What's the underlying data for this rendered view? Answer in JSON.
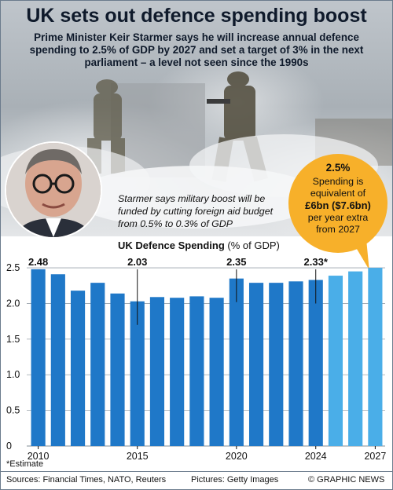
{
  "header": {
    "title": "UK sets out defence spending boost",
    "subtitle": "Prime Minister Keir Starmer says he will increase annual defence spending to 2.5% of GDP by 2027 and set a target of 3% in the next parliament – a level not seen since the 1990s"
  },
  "callout": {
    "percent": "2.5%",
    "line1": "Spending is",
    "line2": "equivalent of",
    "amount": "£6bn ($7.6bn)",
    "line3": "per year extra",
    "line4": "from 2027"
  },
  "note": "Starmer says military boost will be funded by cutting foreign aid budget from 0.5% to 0.3% of GDP",
  "chart_data": {
    "type": "bar",
    "title": "UK Defence Spending",
    "title_unit": "(% of GDP)",
    "categories": [
      "2010",
      "2011",
      "2012",
      "2013",
      "2014",
      "2015",
      "2016",
      "2017",
      "2018",
      "2019",
      "2020",
      "2021",
      "2022",
      "2023",
      "2024",
      "2025",
      "2026",
      "2027"
    ],
    "x_tick_labels": [
      "2010",
      "2015",
      "2020",
      "2024",
      "2027"
    ],
    "values": [
      2.48,
      2.41,
      2.18,
      2.29,
      2.14,
      2.03,
      2.09,
      2.08,
      2.1,
      2.08,
      2.35,
      2.29,
      2.29,
      2.31,
      2.33,
      2.39,
      2.45,
      2.5
    ],
    "estimate_from": "2024",
    "annotations": [
      {
        "category": "2010",
        "label": "2.48"
      },
      {
        "category": "2015",
        "label": "2.03"
      },
      {
        "category": "2020",
        "label": "2.35"
      },
      {
        "category": "2024",
        "label": "2.33*"
      }
    ],
    "ylim": [
      0,
      2.6
    ],
    "yticks": [
      0,
      0.5,
      1.0,
      1.5,
      2.0,
      2.5
    ],
    "ytick_labels": [
      "0",
      "0.5",
      "1.0",
      "1.5",
      "2.0",
      "2.5"
    ],
    "colors": {
      "actual": "#1f78c8",
      "projected": "#4aaee8",
      "grid": "#9aa3ab"
    },
    "grid": true
  },
  "footnote": "*Estimate",
  "footer": {
    "sources": "Sources: Financial Times, NATO, Reuters",
    "pictures": "Pictures: Getty Images",
    "credit": "© GRAPHIC NEWS"
  }
}
